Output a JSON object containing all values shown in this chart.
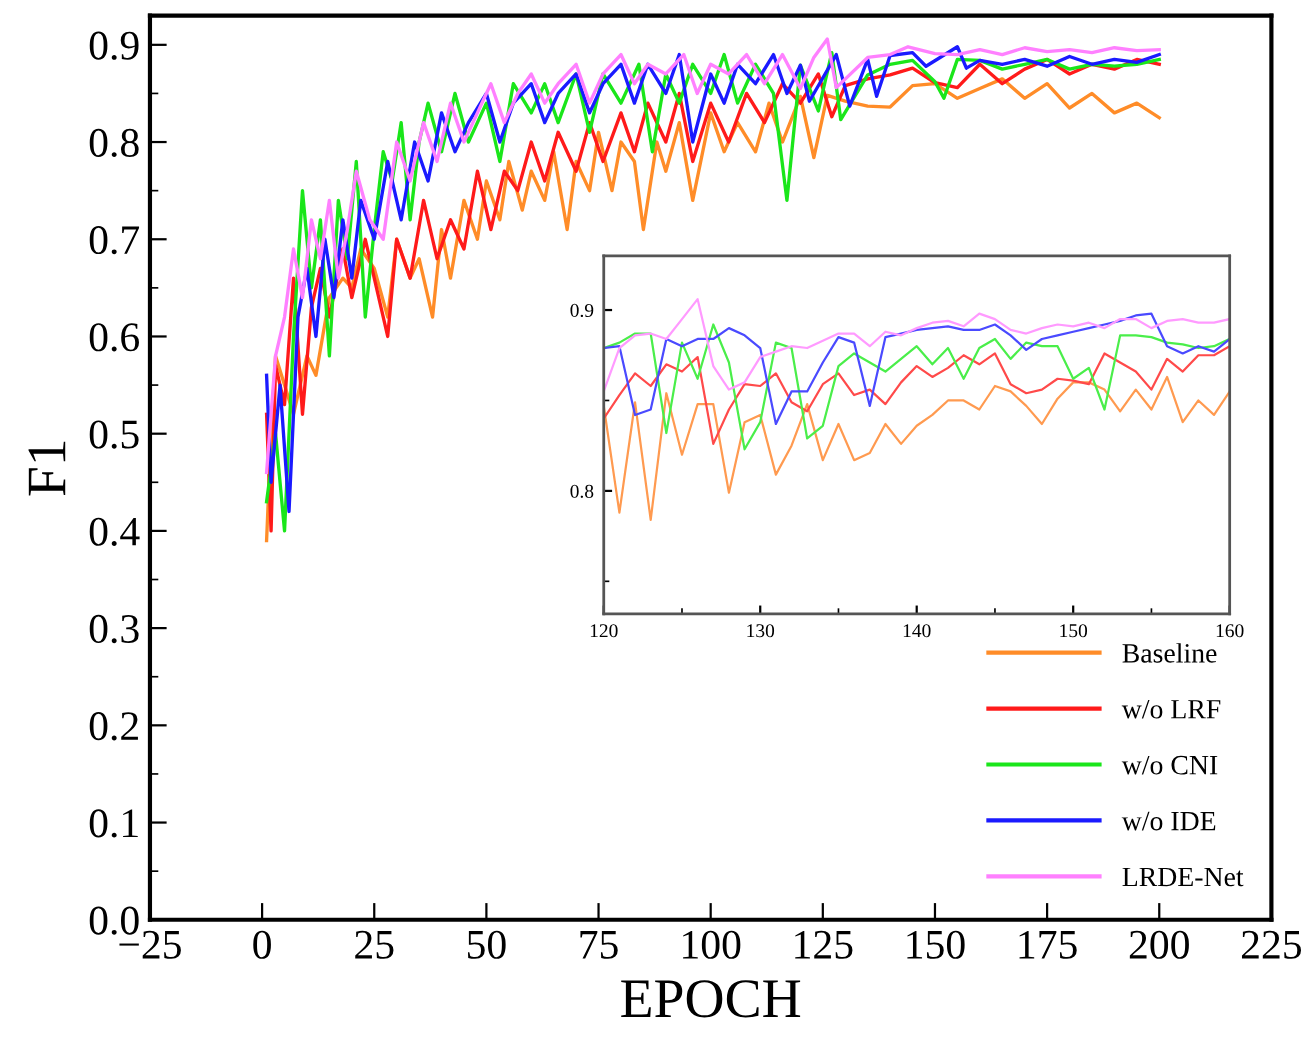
{
  "chart_data": [
    {
      "type": "line",
      "xlabel": "EPOCH",
      "ylabel": "F1",
      "xlim": [
        -25,
        225
      ],
      "ylim": [
        0,
        0.93
      ],
      "xticks": [
        -25,
        0,
        25,
        50,
        75,
        100,
        125,
        150,
        175,
        200,
        225
      ],
      "yticks": [
        {
          "value": 0,
          "label": "0.0"
        },
        {
          "value": 0.05,
          "label": null
        },
        {
          "value": 0.1,
          "label": "0.1"
        },
        {
          "value": 0.15,
          "label": null
        },
        {
          "value": 0.2,
          "label": "0.2"
        },
        {
          "value": 0.25,
          "label": null
        },
        {
          "value": 0.3,
          "label": "0.3"
        },
        {
          "value": 0.35,
          "label": null
        },
        {
          "value": 0.4,
          "label": "0.4"
        },
        {
          "value": 0.45,
          "label": null
        },
        {
          "value": 0.5,
          "label": "0.5"
        },
        {
          "value": 0.55,
          "label": null
        },
        {
          "value": 0.6,
          "label": "0.6"
        },
        {
          "value": 0.65,
          "label": null
        },
        {
          "value": 0.7,
          "label": "0.7"
        },
        {
          "value": 0.75,
          "label": null
        },
        {
          "value": 0.8,
          "label": "0.8"
        },
        {
          "value": 0.85,
          "label": null
        },
        {
          "value": 0.9,
          "label": "0.9"
        }
      ],
      "legend": "bottom right",
      "grid": false,
      "series": [
        {
          "name": "Baseline",
          "color": "#ff8c28",
          "x": [
            1,
            2,
            3,
            5,
            7,
            10,
            12,
            15,
            18,
            20,
            22,
            25,
            28,
            30,
            33,
            35,
            38,
            40,
            42,
            45,
            48,
            50,
            53,
            55,
            58,
            60,
            63,
            65,
            68,
            70,
            73,
            75,
            78,
            80,
            83,
            85,
            88,
            90,
            93,
            96,
            100,
            103,
            106,
            110,
            113,
            116,
            120,
            123,
            126,
            130,
            135,
            140,
            145,
            150,
            155,
            160,
            165,
            170,
            175,
            180,
            185,
            190,
            195,
            200
          ],
          "values": [
            0.39,
            0.5,
            0.58,
            0.55,
            0.52,
            0.58,
            0.56,
            0.64,
            0.66,
            0.65,
            0.69,
            0.67,
            0.62,
            0.7,
            0.66,
            0.68,
            0.62,
            0.71,
            0.66,
            0.74,
            0.7,
            0.76,
            0.72,
            0.78,
            0.73,
            0.77,
            0.74,
            0.79,
            0.71,
            0.78,
            0.75,
            0.81,
            0.75,
            0.8,
            0.78,
            0.71,
            0.8,
            0.77,
            0.82,
            0.74,
            0.83,
            0.79,
            0.82,
            0.79,
            0.84,
            0.8,
            0.847,
            0.784,
            0.848,
            0.842,
            0.837,
            0.836,
            0.858,
            0.86,
            0.845,
            0.855,
            0.865,
            0.845,
            0.86,
            0.835,
            0.85,
            0.83,
            0.84,
            0.825
          ]
        },
        {
          "name": "w/o LRF",
          "color": "#ff1a1a",
          "x": [
            1,
            2,
            3,
            5,
            7,
            9,
            11,
            13,
            15,
            18,
            20,
            23,
            25,
            28,
            30,
            33,
            36,
            39,
            42,
            45,
            48,
            51,
            54,
            57,
            60,
            63,
            66,
            70,
            73,
            76,
            80,
            83,
            86,
            90,
            93,
            96,
            100,
            104,
            108,
            112,
            116,
            120,
            124,
            127,
            130,
            135,
            140,
            145,
            150,
            155,
            160,
            165,
            170,
            175,
            180,
            185,
            190,
            195,
            200
          ],
          "values": [
            0.52,
            0.4,
            0.57,
            0.53,
            0.66,
            0.52,
            0.63,
            0.67,
            0.62,
            0.69,
            0.64,
            0.7,
            0.66,
            0.6,
            0.7,
            0.66,
            0.74,
            0.68,
            0.72,
            0.69,
            0.77,
            0.71,
            0.77,
            0.75,
            0.8,
            0.76,
            0.81,
            0.77,
            0.82,
            0.78,
            0.83,
            0.79,
            0.84,
            0.8,
            0.85,
            0.78,
            0.84,
            0.8,
            0.85,
            0.82,
            0.86,
            0.84,
            0.87,
            0.826,
            0.858,
            0.865,
            0.869,
            0.876,
            0.861,
            0.856,
            0.88,
            0.86,
            0.875,
            0.885,
            0.87,
            0.88,
            0.875,
            0.885,
            0.88
          ]
        },
        {
          "name": "w/o CNI",
          "color": "#1ae61a",
          "x": [
            1,
            3,
            5,
            7,
            9,
            11,
            13,
            15,
            17,
            19,
            21,
            23,
            25,
            27,
            29,
            31,
            33,
            35,
            37,
            40,
            43,
            46,
            50,
            53,
            56,
            60,
            63,
            66,
            70,
            73,
            76,
            80,
            84,
            87,
            90,
            93,
            96,
            100,
            103,
            106,
            110,
            114,
            117,
            120,
            124,
            127,
            129,
            135,
            140,
            145,
            150,
            152,
            155,
            160,
            165,
            170,
            175,
            180,
            185,
            190,
            195,
            200
          ],
          "values": [
            0.43,
            0.5,
            0.4,
            0.6,
            0.75,
            0.65,
            0.72,
            0.58,
            0.74,
            0.68,
            0.78,
            0.62,
            0.71,
            0.79,
            0.76,
            0.82,
            0.72,
            0.8,
            0.84,
            0.79,
            0.85,
            0.8,
            0.84,
            0.78,
            0.86,
            0.83,
            0.86,
            0.82,
            0.87,
            0.81,
            0.87,
            0.84,
            0.88,
            0.79,
            0.87,
            0.84,
            0.88,
            0.85,
            0.89,
            0.84,
            0.88,
            0.85,
            0.74,
            0.879,
            0.832,
            0.892,
            0.823,
            0.869,
            0.88,
            0.884,
            0.862,
            0.845,
            0.885,
            0.884,
            0.875,
            0.88,
            0.885,
            0.875,
            0.88,
            0.878,
            0.88,
            0.885
          ]
        },
        {
          "name": "w/o IDE",
          "color": "#1a1aff",
          "x": [
            1,
            2,
            4,
            6,
            8,
            10,
            12,
            14,
            16,
            18,
            20,
            22,
            25,
            28,
            31,
            34,
            37,
            40,
            43,
            46,
            50,
            53,
            56,
            60,
            63,
            66,
            70,
            73,
            76,
            80,
            83,
            86,
            90,
            93,
            96,
            100,
            103,
            106,
            110,
            114,
            117,
            120,
            122,
            128,
            131,
            135,
            137,
            140,
            145,
            148,
            155,
            157,
            160,
            165,
            170,
            175,
            180,
            185,
            190,
            195,
            200
          ],
          "values": [
            0.56,
            0.45,
            0.55,
            0.42,
            0.62,
            0.67,
            0.6,
            0.7,
            0.64,
            0.72,
            0.66,
            0.74,
            0.7,
            0.78,
            0.72,
            0.8,
            0.76,
            0.83,
            0.79,
            0.82,
            0.85,
            0.8,
            0.84,
            0.86,
            0.82,
            0.85,
            0.87,
            0.83,
            0.86,
            0.88,
            0.84,
            0.88,
            0.85,
            0.89,
            0.8,
            0.87,
            0.84,
            0.88,
            0.86,
            0.89,
            0.85,
            0.879,
            0.842,
            0.89,
            0.837,
            0.885,
            0.847,
            0.889,
            0.892,
            0.878,
            0.898,
            0.876,
            0.884,
            0.88,
            0.885,
            0.878,
            0.888,
            0.88,
            0.885,
            0.882,
            0.89
          ]
        },
        {
          "name": "LRDE-Net",
          "color": "#ff80ff",
          "x": [
            1,
            3,
            5,
            7,
            9,
            11,
            13,
            15,
            17,
            19,
            21,
            24,
            27,
            30,
            33,
            36,
            39,
            42,
            45,
            48,
            51,
            54,
            57,
            60,
            63,
            66,
            70,
            73,
            76,
            80,
            83,
            86,
            90,
            94,
            97,
            100,
            104,
            108,
            112,
            116,
            120,
            123,
            126,
            128,
            135,
            140,
            144,
            150,
            155,
            160,
            165,
            170,
            175,
            180,
            185,
            190,
            195,
            200
          ],
          "values": [
            0.46,
            0.58,
            0.62,
            0.69,
            0.64,
            0.72,
            0.68,
            0.74,
            0.66,
            0.71,
            0.77,
            0.72,
            0.7,
            0.8,
            0.76,
            0.82,
            0.78,
            0.84,
            0.8,
            0.83,
            0.86,
            0.82,
            0.85,
            0.87,
            0.84,
            0.86,
            0.88,
            0.84,
            0.87,
            0.89,
            0.86,
            0.88,
            0.87,
            0.89,
            0.85,
            0.88,
            0.87,
            0.89,
            0.86,
            0.89,
            0.855,
            0.887,
            0.906,
            0.856,
            0.887,
            0.89,
            0.898,
            0.891,
            0.89,
            0.895,
            0.89,
            0.897,
            0.893,
            0.895,
            0.892,
            0.897,
            0.894,
            0.895
          ]
        }
      ]
    },
    {
      "type": "line",
      "xlim": [
        120,
        160
      ],
      "ylim": [
        0.732,
        0.93
      ],
      "xticks": [
        120,
        {
          "value": 125,
          "label": null
        },
        130,
        {
          "value": 135,
          "label": null
        },
        140,
        {
          "value": 145,
          "label": null
        },
        150,
        {
          "value": 155,
          "label": null
        },
        160
      ],
      "yticks": [
        {
          "value": 0.75,
          "label": null
        },
        {
          "value": 0.8,
          "label": "0.8"
        },
        {
          "value": 0.85,
          "label": null
        },
        {
          "value": 0.9,
          "label": "0.9"
        }
      ],
      "x": [
        120,
        121,
        122,
        123,
        124,
        125,
        126,
        127,
        128,
        129,
        130,
        131,
        132,
        133,
        134,
        135,
        136,
        137,
        138,
        139,
        140,
        141,
        142,
        143,
        144,
        145,
        146,
        147,
        148,
        149,
        150,
        151,
        152,
        153,
        154,
        155,
        156,
        157,
        158,
        159,
        160
      ],
      "series": [
        {
          "color": "#ff9a50",
          "values": [
            0.847,
            0.788,
            0.849,
            0.784,
            0.854,
            0.82,
            0.848,
            0.848,
            0.799,
            0.838,
            0.842,
            0.809,
            0.825,
            0.848,
            0.817,
            0.837,
            0.817,
            0.821,
            0.837,
            0.826,
            0.836,
            0.842,
            0.85,
            0.85,
            0.845,
            0.858,
            0.855,
            0.847,
            0.837,
            0.851,
            0.86,
            0.86,
            0.856,
            0.844,
            0.856,
            0.845,
            0.863,
            0.838,
            0.85,
            0.842,
            0.855
          ]
        },
        {
          "color": "#ff4a4a",
          "values": [
            0.84,
            0.853,
            0.865,
            0.858,
            0.87,
            0.866,
            0.874,
            0.826,
            0.845,
            0.859,
            0.858,
            0.865,
            0.849,
            0.844,
            0.859,
            0.865,
            0.853,
            0.856,
            0.848,
            0.86,
            0.869,
            0.863,
            0.868,
            0.875,
            0.87,
            0.876,
            0.859,
            0.854,
            0.856,
            0.862,
            0.861,
            0.859,
            0.876,
            0.871,
            0.866,
            0.856,
            0.873,
            0.866,
            0.875,
            0.875,
            0.88
          ]
        },
        {
          "color": "#4aee4a",
          "values": [
            0.879,
            0.882,
            0.887,
            0.887,
            0.832,
            0.882,
            0.862,
            0.892,
            0.871,
            0.823,
            0.838,
            0.882,
            0.879,
            0.829,
            0.836,
            0.869,
            0.876,
            0.871,
            0.866,
            0.873,
            0.88,
            0.87,
            0.879,
            0.862,
            0.879,
            0.884,
            0.873,
            0.882,
            0.88,
            0.88,
            0.862,
            0.868,
            0.845,
            0.886,
            0.886,
            0.885,
            0.882,
            0.881,
            0.879,
            0.88,
            0.884
          ]
        },
        {
          "color": "#4a4aff",
          "values": [
            0.879,
            0.88,
            0.842,
            0.845,
            0.884,
            0.88,
            0.884,
            0.884,
            0.89,
            0.886,
            0.879,
            0.837,
            0.855,
            0.855,
            0.871,
            0.885,
            0.882,
            0.847,
            0.885,
            0.887,
            0.889,
            0.89,
            0.891,
            0.889,
            0.889,
            0.892,
            0.886,
            0.878,
            0.884,
            0.886,
            0.888,
            0.89,
            0.892,
            0.894,
            0.897,
            0.898,
            0.88,
            0.876,
            0.88,
            0.877,
            0.884
          ]
        },
        {
          "color": "#ff9aff",
          "values": [
            0.855,
            0.879,
            0.886,
            0.887,
            0.884,
            0.895,
            0.906,
            0.869,
            0.856,
            0.86,
            0.874,
            0.877,
            0.88,
            0.879,
            0.883,
            0.887,
            0.887,
            0.88,
            0.888,
            0.886,
            0.89,
            0.893,
            0.894,
            0.891,
            0.898,
            0.895,
            0.889,
            0.887,
            0.89,
            0.892,
            0.891,
            0.893,
            0.89,
            0.895,
            0.895,
            0.89,
            0.894,
            0.895,
            0.893,
            0.893,
            0.895
          ]
        }
      ]
    }
  ]
}
